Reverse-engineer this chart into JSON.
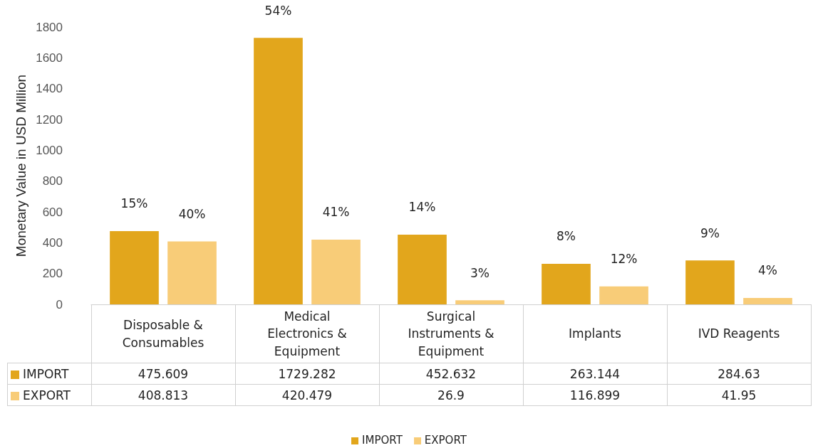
{
  "chart_data": {
    "type": "bar",
    "ylabel": "Monetary Value in USD Million",
    "categories": [
      "Disposable & Consumables",
      "Medical Electronics & Equipment",
      "Surgical Instruments & Equipment",
      "Implants",
      "IVD Reagents"
    ],
    "series": [
      {
        "name": "IMPORT",
        "color": "#e2a61c",
        "values": [
          475.609,
          1729.282,
          452.632,
          263.144,
          284.63
        ]
      },
      {
        "name": "EXPORT",
        "color": "#f8cc78",
        "values": [
          408.813,
          420.479,
          26.9,
          116.899,
          41.95
        ]
      }
    ],
    "annotations": [
      "15%",
      "54%",
      "14%",
      "8%",
      "9%",
      "40%",
      "41%",
      "3%",
      "12%",
      "4%"
    ],
    "ylim": [
      0,
      1800
    ],
    "yticks": [
      0,
      200,
      400,
      600,
      800,
      1000,
      1200,
      1400,
      1600,
      1800
    ],
    "grid": false,
    "legend": "bottom",
    "data_labels": true
  }
}
